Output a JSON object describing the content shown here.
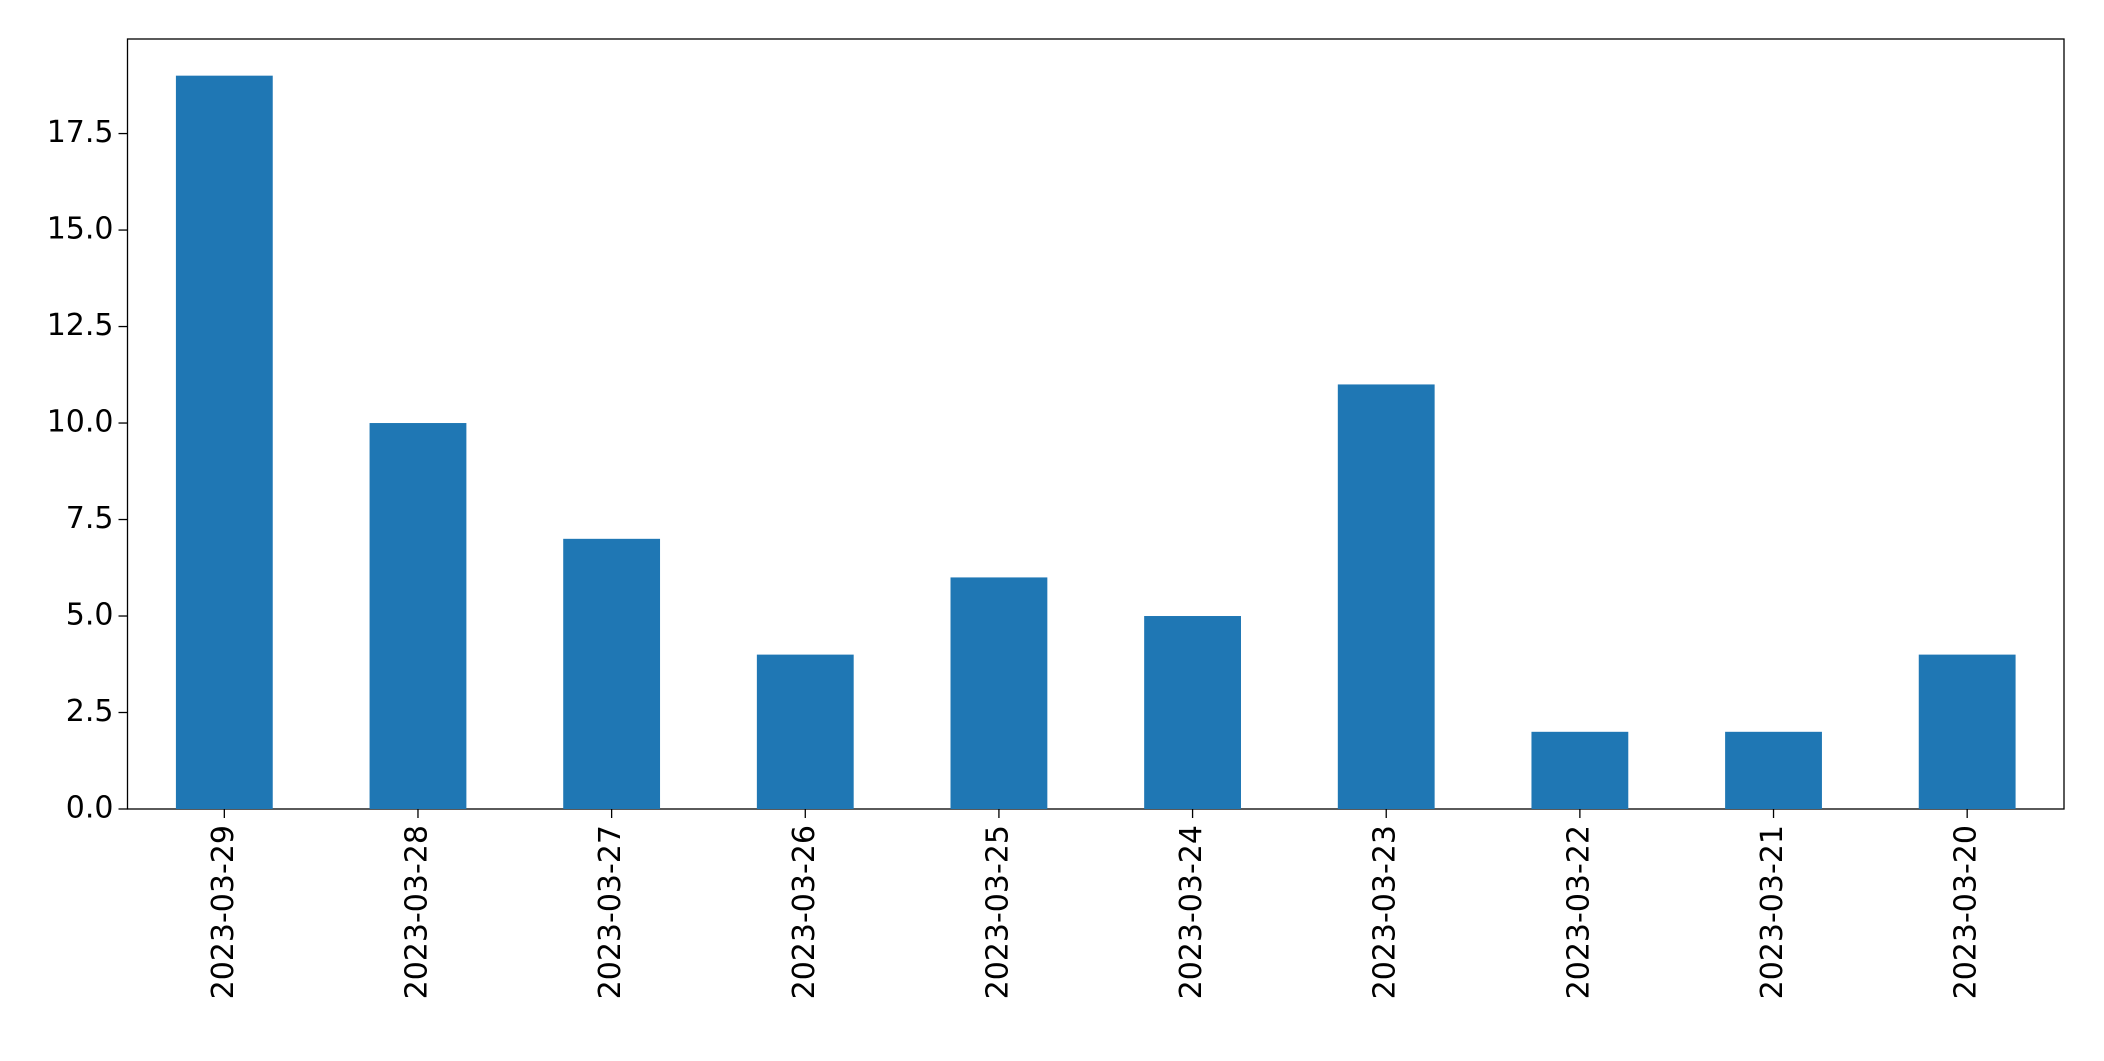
{
  "chart_data": {
    "type": "bar",
    "categories": [
      "2023-03-29",
      "2023-03-28",
      "2023-03-27",
      "2023-03-26",
      "2023-03-25",
      "2023-03-24",
      "2023-03-23",
      "2023-03-22",
      "2023-03-21",
      "2023-03-20"
    ],
    "values": [
      19,
      10,
      7,
      4,
      6,
      5,
      11,
      2,
      2,
      4
    ],
    "color": "#1f77b4",
    "ylim": [
      0,
      19.95
    ],
    "yticks": [
      {
        "value": 0,
        "label": "0.0"
      },
      2.5,
      {
        "value": 5,
        "label": "5.0"
      },
      7.5,
      {
        "value": 10,
        "label": "10.0"
      },
      12.5,
      {
        "value": 15,
        "label": "15.0"
      },
      17.5
    ],
    "grid": false
  }
}
